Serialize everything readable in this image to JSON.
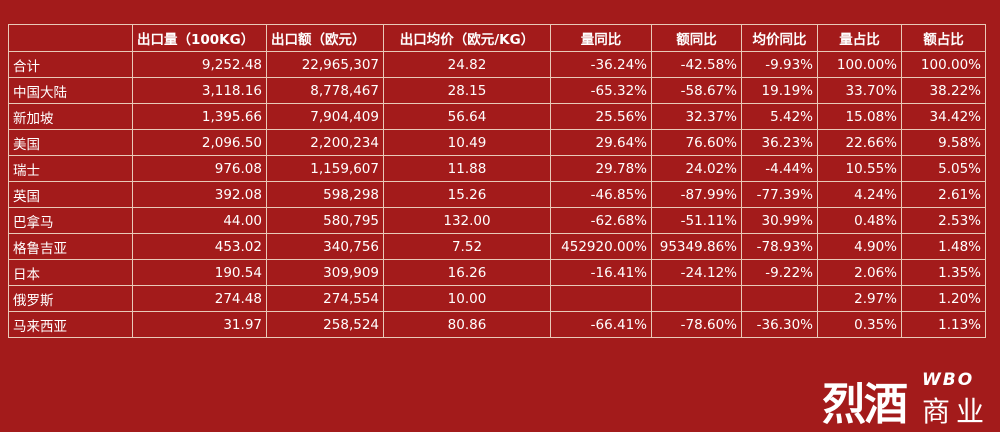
{
  "table": {
    "headers": [
      "",
      "出口量（100KG）",
      "出口额（欧元）",
      "出口均价（欧元/KG）",
      "量同比",
      "额同比",
      "均价同比",
      "量占比",
      "额占比"
    ],
    "rows": [
      [
        "合计",
        "9,252.48",
        "22,965,307",
        "24.82",
        "-36.24%",
        "-42.58%",
        "-9.93%",
        "100.00%",
        "100.00%"
      ],
      [
        "中国大陆",
        "3,118.16",
        "8,778,467",
        "28.15",
        "-65.32%",
        "-58.67%",
        "19.19%",
        "33.70%",
        "38.22%"
      ],
      [
        "新加坡",
        "1,395.66",
        "7,904,409",
        "56.64",
        "25.56%",
        "32.37%",
        "5.42%",
        "15.08%",
        "34.42%"
      ],
      [
        "美国",
        "2,096.50",
        "2,200,234",
        "10.49",
        "29.64%",
        "76.60%",
        "36.23%",
        "22.66%",
        "9.58%"
      ],
      [
        "瑞士",
        "976.08",
        "1,159,607",
        "11.88",
        "29.78%",
        "24.02%",
        "-4.44%",
        "10.55%",
        "5.05%"
      ],
      [
        "英国",
        "392.08",
        "598,298",
        "15.26",
        "-46.85%",
        "-87.99%",
        "-77.39%",
        "4.24%",
        "2.61%"
      ],
      [
        "巴拿马",
        "44.00",
        "580,795",
        "132.00",
        "-62.68%",
        "-51.11%",
        "30.99%",
        "0.48%",
        "2.53%"
      ],
      [
        "格鲁吉亚",
        "453.02",
        "340,756",
        "7.52",
        "452920.00%",
        "95349.86%",
        "-78.93%",
        "4.90%",
        "1.48%"
      ],
      [
        "日本",
        "190.54",
        "309,909",
        "16.26",
        "-16.41%",
        "-24.12%",
        "-9.22%",
        "2.06%",
        "1.35%"
      ],
      [
        "俄罗斯",
        "274.48",
        "274,554",
        "10.00",
        "",
        "",
        "",
        "2.97%",
        "1.20%"
      ],
      [
        "马来西亚",
        "31.97",
        "258,524",
        "80.86",
        "-66.41%",
        "-78.60%",
        "-36.30%",
        "0.35%",
        "1.13%"
      ]
    ]
  },
  "logo": {
    "main": "烈酒",
    "sub_en": "WBO",
    "sub_cn": "商业"
  },
  "colors": {
    "background": "#a31b1b",
    "grid": "#e9c9b8",
    "text": "#ffffff"
  }
}
